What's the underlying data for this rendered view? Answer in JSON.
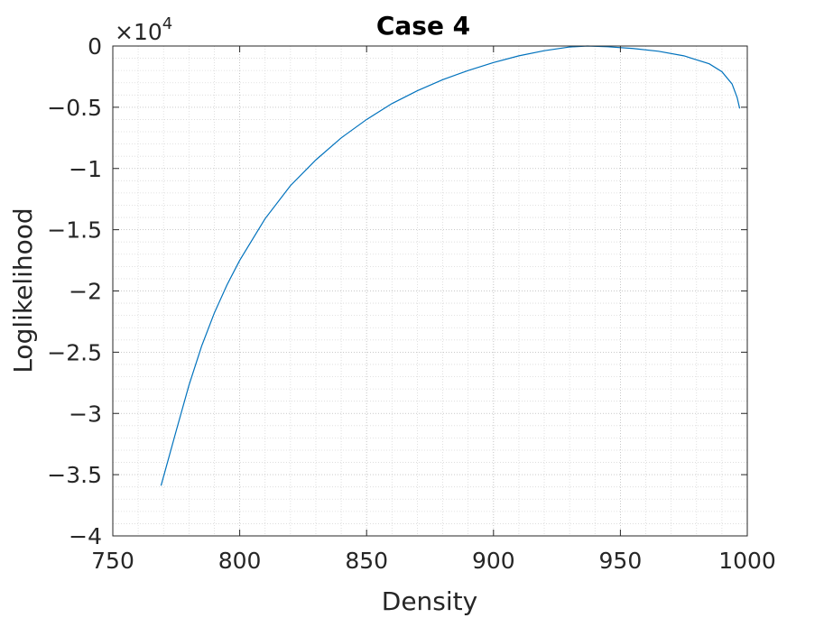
{
  "chart_data": {
    "type": "line",
    "title": "Case 4",
    "xlabel": "Density",
    "ylabel": "Loglikelihood",
    "xlim": [
      750,
      1000
    ],
    "ylim": [
      -40000,
      0
    ],
    "y_exponent_label": "×10",
    "y_exponent_power": "4",
    "x_ticks": [
      750,
      800,
      850,
      900,
      950,
      1000
    ],
    "x_tick_labels": [
      "750",
      "800",
      "850",
      "900",
      "950",
      "1000"
    ],
    "y_ticks": [
      0,
      -5000,
      -10000,
      -15000,
      -20000,
      -25000,
      -30000,
      -35000,
      -40000
    ],
    "y_tick_labels": [
      "0",
      "−0.5",
      "−1",
      "−1.5",
      "−2",
      "−2.5",
      "−3",
      "−3.5",
      "−4"
    ],
    "grid": true,
    "minor_grid": true,
    "series": [
      {
        "color": "#0072BD",
        "x": [
          769,
          775,
          780,
          785,
          790,
          795,
          800,
          810,
          820,
          830,
          840,
          850,
          860,
          870,
          880,
          890,
          900,
          910,
          920,
          930,
          937,
          945,
          955,
          965,
          975,
          985,
          990,
          994,
          996,
          997
        ],
        "y": [
          -35900,
          -31400,
          -27700,
          -24500,
          -21800,
          -19500,
          -17500,
          -14100,
          -11400,
          -9300,
          -7500,
          -6000,
          -4700,
          -3650,
          -2750,
          -2000,
          -1350,
          -800,
          -380,
          -80,
          0,
          -60,
          -200,
          -430,
          -800,
          -1450,
          -2100,
          -3100,
          -4200,
          -5100
        ]
      }
    ]
  }
}
